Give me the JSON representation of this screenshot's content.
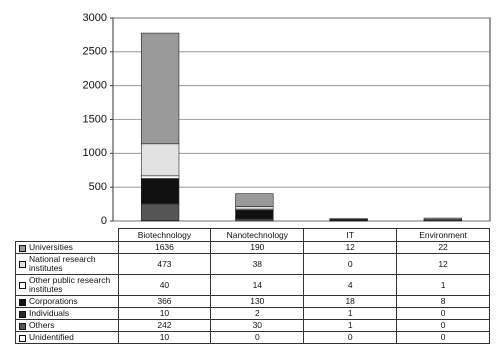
{
  "chart_data": {
    "type": "stacked_bar",
    "categories": [
      "Biotechnology",
      "Nanotechnology",
      "IT",
      "Environment"
    ],
    "series": [
      {
        "name": "Universities",
        "color": "#9a9a9a",
        "values": [
          1636,
          190,
          12,
          22
        ]
      },
      {
        "name": "National research institutes",
        "color": "#e2e2e2",
        "values": [
          473,
          38,
          0,
          12
        ]
      },
      {
        "name": "Other public research institutes",
        "color": "#ffffff",
        "values": [
          40,
          14,
          4,
          1
        ]
      },
      {
        "name": "Corporations",
        "color": "#111111",
        "values": [
          366,
          130,
          18,
          8
        ]
      },
      {
        "name": "Individuals",
        "color": "#2a2a2a",
        "values": [
          10,
          2,
          1,
          0
        ]
      },
      {
        "name": "Others",
        "color": "#555555",
        "values": [
          242,
          30,
          1,
          0
        ]
      },
      {
        "name": "Unidentified",
        "color": "#ffffff",
        "values": [
          10,
          0,
          0,
          0
        ]
      }
    ],
    "ylim": [
      0,
      3000
    ],
    "yticks": [
      0,
      500,
      1000,
      1500,
      2000,
      2500,
      3000
    ],
    "grid": true
  }
}
